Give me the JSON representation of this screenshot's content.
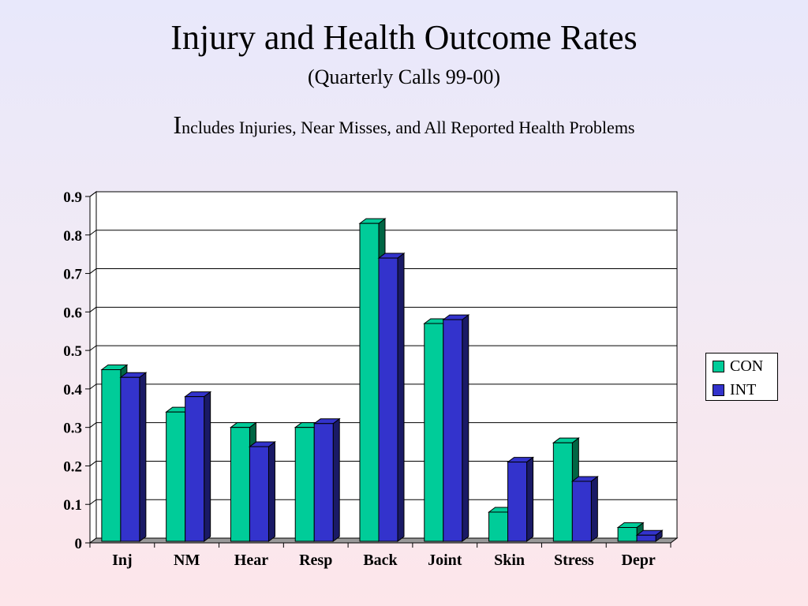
{
  "title": "Injury and Health Outcome Rates",
  "subtitle": "(Quarterly Calls 99-00)",
  "note": {
    "initial": "I",
    "rest": "ncludes Injuries, Near Misses, and All Reported Health Problems"
  },
  "colors": {
    "con": "#00cc99",
    "con_dark": "#006644",
    "int": "#3333cc",
    "int_dark": "#1a1a66",
    "floor": "#999999"
  },
  "chart_data": {
    "type": "bar",
    "categories": [
      "Inj",
      "NM",
      "Hear",
      "Resp",
      "Back",
      "Joint",
      "Skin",
      "Stress",
      "Depr"
    ],
    "series": [
      {
        "name": "CON",
        "values": [
          0.45,
          0.34,
          0.3,
          0.3,
          0.83,
          0.57,
          0.08,
          0.26,
          0.04
        ]
      },
      {
        "name": "INT",
        "values": [
          0.43,
          0.38,
          0.25,
          0.31,
          0.74,
          0.58,
          0.21,
          0.16,
          0.02
        ]
      }
    ],
    "yticks": [
      "0",
      "0.1",
      "0.2",
      "0.3",
      "0.4",
      "0.5",
      "0.6",
      "0.7",
      "0.8",
      "0.9"
    ],
    "ylim": [
      0,
      0.9
    ],
    "grid": true,
    "legend_position": "right"
  }
}
